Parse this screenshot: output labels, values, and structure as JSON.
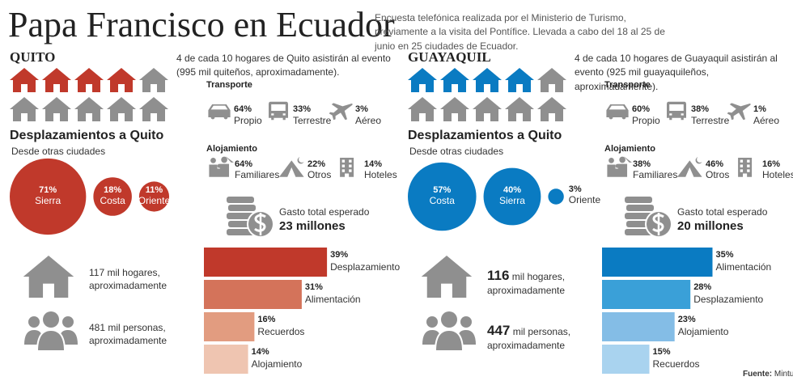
{
  "header": {
    "title": "Papa Francisco en Ecuador",
    "subtitle": "Encuesta telefónica realizada por el Ministerio de Turismo, previamente a la visita del Pontífice. Llevada a cabo del 18 al 25 de junio en 25 ciudades de Ecuador."
  },
  "source": {
    "label": "Fuente:",
    "text": "Mintur"
  },
  "cities": [
    {
      "name": "QUITO",
      "color": "#c0392b",
      "intro": "4 de cada 10 hogares de Quito asistirán al evento (995 mil quiteños, aproximadamente).",
      "houses": {
        "filled": 4,
        "total": 10
      },
      "transport": {
        "title": "Transporte",
        "items": [
          {
            "value": 64,
            "value_label": "64%",
            "label": "Propio"
          },
          {
            "value": 33,
            "value_label": "33%",
            "label": "Terrestre"
          },
          {
            "value": 3,
            "value_label": "3%",
            "label": "Aéreo"
          }
        ]
      },
      "origin": {
        "title": "Desplazamientos a Quito",
        "subtitle": "Desde otras ciudades",
        "items": [
          {
            "value": 71,
            "value_label": "71%",
            "label": "Sierra"
          },
          {
            "value": 18,
            "value_label": "18%",
            "label": "Costa"
          },
          {
            "value": 11,
            "value_label": "11%",
            "label": "Oriente"
          }
        ]
      },
      "lodging": {
        "title": "Alojamiento",
        "items": [
          {
            "value": 64,
            "value_label": "64%",
            "label": "Familiares"
          },
          {
            "value": 22,
            "value_label": "22%",
            "label": "Otros"
          },
          {
            "value": 14,
            "value_label": "14%",
            "label": "Hoteles"
          }
        ]
      },
      "spending": {
        "label": "Gasto total esperado",
        "amount": "23 millones"
      },
      "households": {
        "number": "117",
        "text": "mil hogares, aproximadamente"
      },
      "people": {
        "number": "481",
        "text": "mil personas, aproximadamente"
      },
      "expenses": {
        "items": [
          {
            "value": 39,
            "value_label": "39%",
            "label": "Desplazamiento",
            "color": "#c0392b"
          },
          {
            "value": 31,
            "value_label": "31%",
            "label": "Alimentación",
            "color": "#d4735a"
          },
          {
            "value": 16,
            "value_label": "16%",
            "label": "Recuerdos",
            "color": "#e29c80"
          },
          {
            "value": 14,
            "value_label": "14%",
            "label": "Alojamiento",
            "color": "#efc5b1"
          }
        ]
      }
    },
    {
      "name": "GUAYAQUIL",
      "color": "#0a7bc2",
      "intro": "4 de cada 10 hogares de Guayaquil asistirán al evento (925 mil guayaquileños, aproximadamente).",
      "houses": {
        "filled": 4,
        "total": 10
      },
      "transport": {
        "title": "Transporte",
        "items": [
          {
            "value": 60,
            "value_label": "60%",
            "label": "Propio"
          },
          {
            "value": 38,
            "value_label": "38%",
            "label": "Terrestre"
          },
          {
            "value": 1,
            "value_label": "1%",
            "label": "Aéreo"
          }
        ]
      },
      "origin": {
        "title": "Desplazamientos a Quito",
        "subtitle": "Desde otras ciudades",
        "items": [
          {
            "value": 57,
            "value_label": "57%",
            "label": "Costa"
          },
          {
            "value": 40,
            "value_label": "40%",
            "label": "Sierra"
          },
          {
            "value": 3,
            "value_label": "3%",
            "label": "Oriente"
          }
        ]
      },
      "lodging": {
        "title": "Alojamiento",
        "items": [
          {
            "value": 38,
            "value_label": "38%",
            "label": "Familiares"
          },
          {
            "value": 46,
            "value_label": "46%",
            "label": "Otros"
          },
          {
            "value": 16,
            "value_label": "16%",
            "label": "Hoteles"
          }
        ]
      },
      "spending": {
        "label": "Gasto total esperado",
        "amount": "20 millones"
      },
      "households": {
        "number": "116",
        "text": "mil hogares, aproximadamente"
      },
      "people": {
        "number": "447",
        "text": "mil personas, aproximadamente"
      },
      "expenses": {
        "items": [
          {
            "value": 35,
            "value_label": "35%",
            "label": "Alimentación",
            "color": "#0a7bc2"
          },
          {
            "value": 28,
            "value_label": "28%",
            "label": "Desplazamiento",
            "color": "#3aa0d8"
          },
          {
            "value": 23,
            "value_label": "23%",
            "label": "Alojamiento",
            "color": "#84bde6"
          },
          {
            "value": 15,
            "value_label": "15%",
            "label": "Recuerdos",
            "color": "#a9d3ef"
          }
        ]
      }
    }
  ]
}
